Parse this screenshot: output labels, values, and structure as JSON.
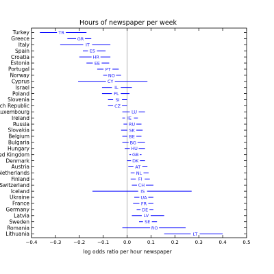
{
  "chart_data": {
    "type": "interval",
    "title": "Hours of newspaper per week",
    "xlabel": "log odds ratio per hour newspaper",
    "ylabel": "",
    "xlim": [
      -0.4,
      0.5
    ],
    "xticks": [
      "-0.4",
      "-0.3",
      "-0.2",
      "-0.1",
      "0.0",
      "0.1",
      "0.2",
      "0.3",
      "0.4",
      "0.5"
    ],
    "reference_line_x": 0.0,
    "grid": false,
    "series_color": "#0000ff",
    "rows": [
      {
        "country": "Turkey",
        "code": "TR",
        "estimate": -0.275,
        "low": -0.365,
        "high": -0.17
      },
      {
        "country": "Greece",
        "code": "GR",
        "estimate": -0.195,
        "low": -0.25,
        "high": -0.15
      },
      {
        "country": "Italy",
        "code": "IT",
        "estimate": -0.165,
        "low": -0.28,
        "high": -0.07
      },
      {
        "country": "Spain",
        "code": "ES",
        "estimate": -0.145,
        "low": -0.185,
        "high": -0.09
      },
      {
        "country": "Croatia",
        "code": "HR",
        "estimate": -0.13,
        "low": -0.2,
        "high": -0.07
      },
      {
        "country": "Estonia",
        "code": "EE",
        "estimate": -0.125,
        "low": -0.17,
        "high": -0.075
      },
      {
        "country": "Portugal",
        "code": "PT",
        "estimate": -0.08,
        "low": -0.125,
        "high": -0.035
      },
      {
        "country": "Norway",
        "code": "NO",
        "estimate": -0.065,
        "low": -0.1,
        "high": -0.025
      },
      {
        "country": "Cyprus",
        "code": "CY",
        "estimate": -0.07,
        "low": -0.205,
        "high": 0.085
      },
      {
        "country": "Israel",
        "code": "IL",
        "estimate": -0.045,
        "low": -0.105,
        "high": 0.02
      },
      {
        "country": "Poland",
        "code": "PL",
        "estimate": -0.045,
        "low": -0.105,
        "high": 0.01
      },
      {
        "country": "Slovenia",
        "code": "SI",
        "estimate": -0.04,
        "low": -0.08,
        "high": 0.0
      },
      {
        "country": "Czech Republic",
        "code": "CZ",
        "estimate": -0.04,
        "low": -0.08,
        "high": 0.0
      },
      {
        "country": "Luxembourg",
        "code": "LU",
        "estimate": 0.03,
        "low": -0.02,
        "high": 0.075
      },
      {
        "country": "Ireland",
        "code": "IE",
        "estimate": 0.01,
        "low": -0.02,
        "high": 0.045
      },
      {
        "country": "Russia",
        "code": "RU",
        "estimate": 0.02,
        "low": -0.015,
        "high": 0.06
      },
      {
        "country": "Slovakia",
        "code": "SK",
        "estimate": 0.02,
        "low": -0.025,
        "high": 0.065
      },
      {
        "country": "Belgium",
        "code": "BE",
        "estimate": 0.02,
        "low": -0.02,
        "high": 0.06
      },
      {
        "country": "Bulgaria",
        "code": "BG",
        "estimate": 0.025,
        "low": -0.02,
        "high": 0.075
      },
      {
        "country": "Hungary",
        "code": "HU",
        "estimate": 0.03,
        "low": -0.01,
        "high": 0.075
      },
      {
        "country": "United Kingdom",
        "code": "GB",
        "estimate": 0.035,
        "low": 0.01,
        "high": 0.06
      },
      {
        "country": "Denmark",
        "code": "DK",
        "estimate": 0.035,
        "low": 0.0,
        "high": 0.075
      },
      {
        "country": "Austria",
        "code": "AT",
        "estimate": 0.045,
        "low": 0.005,
        "high": 0.085
      },
      {
        "country": "Netherlands",
        "code": "NL",
        "estimate": 0.05,
        "low": 0.015,
        "high": 0.09
      },
      {
        "country": "Finland",
        "code": "FI",
        "estimate": 0.055,
        "low": 0.015,
        "high": 0.095
      },
      {
        "country": "Switzerland",
        "code": "CH",
        "estimate": 0.06,
        "low": 0.02,
        "high": 0.11
      },
      {
        "country": "Iceland",
        "code": "IS",
        "estimate": 0.065,
        "low": -0.145,
        "high": 0.27
      },
      {
        "country": "Ukraine",
        "code": "UA",
        "estimate": 0.07,
        "low": 0.03,
        "high": 0.11
      },
      {
        "country": "France",
        "code": "FR",
        "estimate": 0.07,
        "low": 0.025,
        "high": 0.11
      },
      {
        "country": "Germany",
        "code": "DE",
        "estimate": 0.075,
        "low": 0.04,
        "high": 0.11
      },
      {
        "country": "Latvia",
        "code": "LV",
        "estimate": 0.08,
        "low": 0.02,
        "high": 0.155
      },
      {
        "country": "Sweden",
        "code": "SE",
        "estimate": 0.085,
        "low": 0.05,
        "high": 0.125
      },
      {
        "country": "Romania",
        "code": "RO",
        "estimate": 0.115,
        "low": -0.02,
        "high": 0.245
      },
      {
        "country": "Lithuania",
        "code": "LT",
        "estimate": 0.285,
        "low": 0.155,
        "high": 0.4
      }
    ]
  }
}
